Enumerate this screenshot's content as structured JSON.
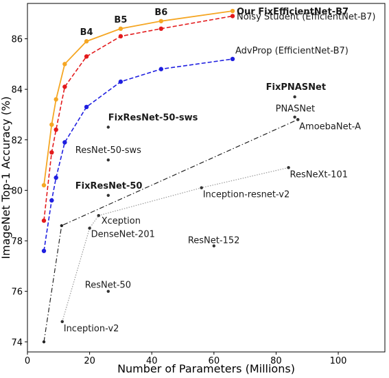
{
  "chart_data": {
    "type": "scatter",
    "xlabel": "Number of Parameters (Millions)",
    "ylabel": "ImageNet Top-1 Accuracy (%)",
    "xlim": [
      0,
      115
    ],
    "ylim": [
      73.6,
      87.4
    ],
    "xticks": [
      "0",
      "20",
      "40",
      "60",
      "80",
      "100"
    ],
    "yticks": [
      "74",
      "76",
      "78",
      "80",
      "82",
      "84",
      "86"
    ],
    "grid": false,
    "series": [
      {
        "name": "Our FixEfficientNet-B7",
        "color": "#f5a623",
        "style": "solid",
        "x": [
          5.3,
          7.8,
          9.2,
          12,
          19,
          30,
          43,
          66
        ],
        "y": [
          80.2,
          82.6,
          83.6,
          85.0,
          85.9,
          86.4,
          86.7,
          87.1
        ],
        "label_pos": "end-right",
        "label_bold": true
      },
      {
        "name": "Noisy Student (EfficientNet-B7)",
        "color": "#e31a1c",
        "style": "dashed",
        "x": [
          5.3,
          7.8,
          9.2,
          12,
          19,
          30,
          43,
          66
        ],
        "y": [
          78.8,
          81.5,
          82.4,
          84.1,
          85.3,
          86.1,
          86.4,
          86.9
        ],
        "label_pos": "end-right",
        "label_bold": false
      },
      {
        "name": "AdvProp (EfficientNet-B7)",
        "color": "#1f1fe0",
        "style": "dashed",
        "x": [
          5.3,
          7.8,
          9.2,
          12,
          19,
          30,
          43,
          66
        ],
        "y": [
          77.6,
          79.6,
          80.5,
          81.9,
          83.3,
          84.3,
          84.8,
          85.2
        ],
        "label_pos": "end-above-right",
        "label_bold": false
      },
      {
        "name": "",
        "color": "#222222",
        "style": "dashdot",
        "x": [
          5.3,
          11,
          87
        ],
        "y": [
          74.0,
          78.6,
          82.8
        ]
      },
      {
        "name": "",
        "color": "#999999",
        "style": "dotted",
        "x": [
          11.2,
          20,
          22.9,
          56,
          84
        ],
        "y": [
          74.8,
          78.5,
          79.0,
          80.1,
          80.9
        ]
      }
    ],
    "stage_labels": [
      {
        "text": "B4",
        "x": 19,
        "y": 85.9
      },
      {
        "text": "B5",
        "x": 30,
        "y": 86.4
      },
      {
        "text": "B6",
        "x": 43,
        "y": 86.7
      }
    ],
    "points": [
      {
        "label": "FixPNASNet",
        "x": 86,
        "y": 83.7,
        "bold": true,
        "color": "#333333",
        "dx": -42,
        "dy": -10
      },
      {
        "label": "PNASNet",
        "x": 86,
        "y": 82.9,
        "bold": false,
        "color": "#333333",
        "dx": -28,
        "dy": -8
      },
      {
        "label": "AmoebaNet-A",
        "x": 87,
        "y": 82.8,
        "bold": false,
        "color": "#333333",
        "dx": 2,
        "dy": 14
      },
      {
        "label": "FixResNet-50-sws",
        "x": 26,
        "y": 82.5,
        "bold": true,
        "color": "#333333",
        "dx": 0,
        "dy": -10
      },
      {
        "label": "ResNet-50-sws",
        "x": 26,
        "y": 81.2,
        "bold": false,
        "color": "#333333",
        "dx": -48,
        "dy": -10
      },
      {
        "label": "FixResNet-50",
        "x": 26,
        "y": 79.8,
        "bold": true,
        "color": "#333333",
        "dx": -48,
        "dy": -10
      },
      {
        "label": "ResNeXt-101",
        "x": 84,
        "y": 80.9,
        "bold": false,
        "color": "#333333",
        "dx": 2,
        "dy": 14
      },
      {
        "label": "Inception-resnet-v2",
        "x": 56,
        "y": 80.1,
        "bold": false,
        "color": "#333333",
        "dx": 2,
        "dy": 14
      },
      {
        "label": "Xception",
        "x": 22.9,
        "y": 79.0,
        "bold": false,
        "color": "#333333",
        "dx": 4,
        "dy": 12
      },
      {
        "label": "DenseNet-201",
        "x": 20,
        "y": 78.5,
        "bold": false,
        "color": "#333333",
        "dx": 2,
        "dy": 13
      },
      {
        "label": "ResNet-152",
        "x": 60,
        "y": 77.8,
        "bold": false,
        "color": "#333333",
        "dx": -38,
        "dy": -4
      },
      {
        "label": "ResNet-50",
        "x": 26,
        "y": 76.0,
        "bold": false,
        "color": "#333333",
        "dx": -34,
        "dy": -5
      },
      {
        "label": "Inception-v2",
        "x": 11.2,
        "y": 74.8,
        "bold": false,
        "color": "#333333",
        "dx": 2,
        "dy": 14
      }
    ]
  }
}
